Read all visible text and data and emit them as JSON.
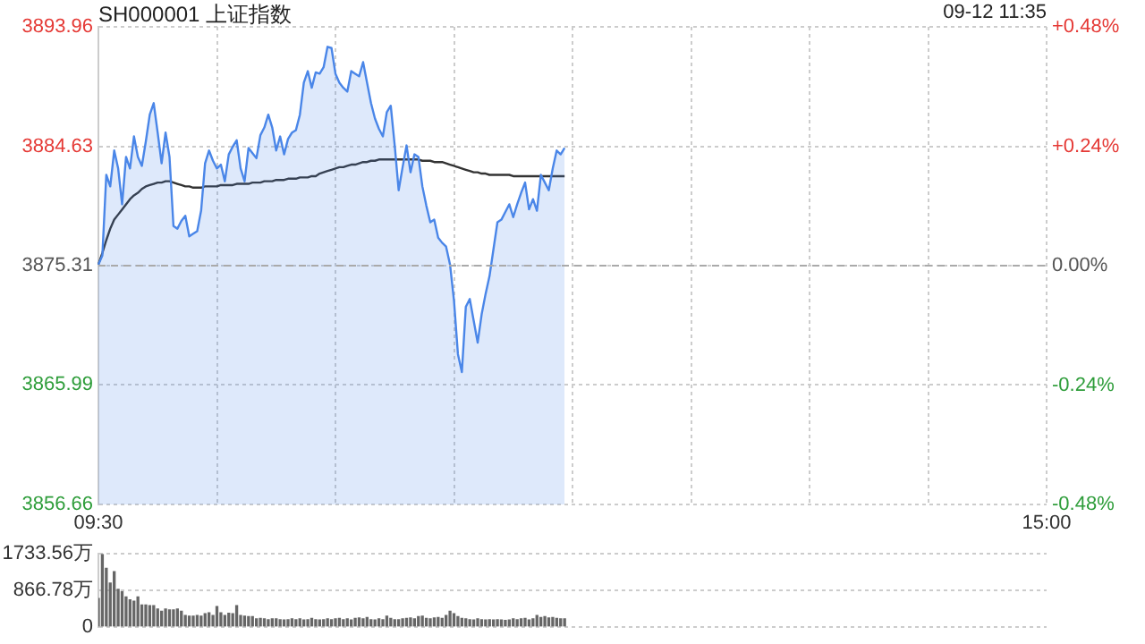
{
  "chart_data": [
    {
      "type": "line",
      "title": "SH000001 上证指数",
      "annotations": [
        "09-12 11:35"
      ],
      "categories": [
        "09:30",
        null,
        null,
        null,
        null,
        null,
        null,
        null,
        null,
        null,
        null,
        null,
        null,
        null,
        null,
        null,
        null,
        null,
        null,
        null,
        null,
        null,
        null,
        null,
        null,
        null,
        null,
        null,
        null,
        null,
        null,
        null,
        null,
        null,
        null,
        null,
        null,
        null,
        null,
        null,
        null,
        null,
        null,
        null,
        null,
        null,
        null,
        null,
        null,
        null,
        null,
        null,
        null,
        null,
        null,
        null,
        null,
        null,
        null,
        null,
        null,
        null,
        null,
        null,
        null,
        null,
        null,
        null,
        null,
        null,
        null,
        null,
        null,
        null,
        null,
        null,
        null,
        null,
        null,
        null,
        null,
        null,
        null,
        null,
        null,
        null,
        null,
        null,
        null,
        null,
        null,
        null,
        null,
        null,
        null,
        null,
        null,
        null,
        null,
        null,
        null,
        null,
        null,
        null,
        null,
        null,
        null,
        null,
        null,
        null,
        null,
        null,
        null,
        null,
        null,
        null,
        null,
        null,
        null,
        null,
        null,
        null,
        null,
        null,
        null,
        null,
        null,
        null,
        null,
        null,
        null,
        null,
        null,
        null,
        null,
        null,
        null,
        null,
        null,
        null,
        null,
        null,
        null,
        null,
        null,
        null,
        null,
        null,
        null,
        null,
        null,
        null,
        null,
        null,
        null,
        null,
        null,
        null,
        null,
        null,
        null,
        null,
        null,
        null,
        null,
        null,
        null,
        null,
        null,
        null,
        null,
        null,
        null,
        null,
        null,
        null,
        null,
        null,
        null,
        null,
        null,
        null,
        null,
        null,
        null,
        null,
        null,
        null,
        null,
        null,
        null,
        null,
        null,
        null,
        null,
        null,
        null,
        null,
        null,
        null,
        null,
        null,
        null,
        null,
        null,
        null,
        null,
        null,
        null,
        null,
        null,
        null,
        null,
        null,
        null,
        null,
        null,
        null,
        null,
        null,
        null,
        null,
        null,
        null,
        null,
        null,
        null,
        null,
        null,
        null,
        null,
        null,
        null,
        null,
        null,
        null,
        null,
        null,
        null,
        null,
        "15:00"
      ],
      "ylim": [
        3856.66,
        3893.96
      ],
      "yticks": [
        3856.66,
        3865.99,
        3875.31,
        3884.63,
        3893.96
      ],
      "y2lim": [
        -0.48,
        0.48
      ],
      "y2ticks": [
        {
          "value": -0.48,
          "label": "-0.48%"
        },
        {
          "value": -0.24,
          "label": "-0.24%"
        },
        {
          "value": 0,
          "label": "0.00%"
        },
        {
          "value": 0.24,
          "label": "+0.24%"
        },
        {
          "value": 0.48,
          "label": "+0.48%"
        }
      ],
      "grid": true,
      "legend": false,
      "marker": "none",
      "ref_lines": [
        {
          "axis": "y",
          "value": 3875.31,
          "color": "#aaaaaa",
          "line_style": "dashed"
        }
      ],
      "series": [
        {
          "type": "area",
          "color": "#4a86e8",
          "values": [
            3875.4,
            3876.1,
            3882.4,
            3881.5,
            3884.3,
            3882.9,
            3880.1,
            3883.8,
            3882.9,
            3885.4,
            3883.8,
            3883.1,
            3885.0,
            3887.1,
            3888.0,
            3885.7,
            3883.3,
            3885.7,
            3883.8,
            3878.4,
            3878.2,
            3878.8,
            3879.2,
            3877.6,
            3877.8,
            3878.0,
            3879.6,
            3883.3,
            3884.3,
            3883.5,
            3882.9,
            3883.2,
            3881.9,
            3884.0,
            3884.6,
            3885.1,
            3882.9,
            3881.9,
            3884.5,
            3884.1,
            3883.7,
            3885.5,
            3886.1,
            3887.1,
            3886.1,
            3884.3,
            3885.4,
            3884.0,
            3885.2,
            3885.7,
            3885.9,
            3887.1,
            3889.6,
            3890.5,
            3889.2,
            3890.4,
            3890.3,
            3890.8,
            3892.4,
            3892.3,
            3890.3,
            3889.6,
            3889.2,
            3888.9,
            3890.5,
            3890.3,
            3890.1,
            3891.2,
            3889.6,
            3888.0,
            3886.8,
            3886.0,
            3885.4,
            3887.3,
            3887.8,
            3884.7,
            3881.2,
            3883.0,
            3884.7,
            3882.6,
            3884.0,
            3883.8,
            3881.5,
            3880.0,
            3878.7,
            3878.9,
            3877.5,
            3877.1,
            3876.8,
            3875.4,
            3872.6,
            3868.4,
            3867.0,
            3872.1,
            3872.7,
            3871.0,
            3869.3,
            3871.5,
            3873.1,
            3874.5,
            3876.6,
            3878.7,
            3878.9,
            3879.5,
            3880.1,
            3879.1,
            3880.1,
            3881.0,
            3881.8,
            3879.7,
            3880.5,
            3879.6,
            3882.4,
            3881.8,
            3881.2,
            3882.9,
            3884.3,
            3884.0,
            3884.5,
            null,
            null,
            null,
            null,
            null,
            null,
            null,
            null,
            null,
            null,
            null,
            null,
            null,
            null,
            null,
            null,
            null,
            null,
            null,
            null,
            null,
            null,
            null,
            null,
            null,
            null,
            null,
            null,
            null,
            null,
            null,
            null,
            null,
            null,
            null,
            null,
            null,
            null,
            null,
            null,
            null,
            null,
            null,
            null,
            null,
            null,
            null,
            null,
            null,
            null,
            null,
            null,
            null,
            null,
            null,
            null,
            null,
            null,
            null,
            null,
            null,
            null,
            null,
            null,
            null,
            null,
            null,
            null,
            null,
            null,
            null,
            null,
            null,
            null,
            null,
            null,
            null,
            null,
            null,
            null,
            null,
            null,
            null,
            null,
            null,
            null,
            null,
            null,
            null,
            null,
            null,
            null,
            null,
            null,
            null,
            null,
            null,
            null,
            null,
            null,
            null,
            null,
            null,
            null,
            null,
            null,
            null,
            null,
            null,
            null,
            null,
            null,
            null,
            null,
            null,
            null,
            null,
            null,
            null,
            null,
            null,
            null
          ]
        },
        {
          "type": "line",
          "color": "#333333",
          "values": [
            3875.4,
            3876.3,
            3877.3,
            3878.2,
            3878.9,
            3879.3,
            3879.7,
            3880.1,
            3880.5,
            3880.8,
            3881.0,
            3881.3,
            3881.5,
            3881.6,
            3881.7,
            3881.8,
            3881.8,
            3881.9,
            3881.9,
            3881.8,
            3881.7,
            3881.6,
            3881.5,
            3881.5,
            3881.4,
            3881.4,
            3881.4,
            3881.5,
            3881.5,
            3881.5,
            3881.5,
            3881.6,
            3881.6,
            3881.6,
            3881.6,
            3881.7,
            3881.7,
            3881.7,
            3881.7,
            3881.8,
            3881.8,
            3881.8,
            3881.9,
            3881.9,
            3881.9,
            3882.0,
            3882.0,
            3882.0,
            3882.1,
            3882.1,
            3882.1,
            3882.2,
            3882.2,
            3882.2,
            3882.3,
            3882.3,
            3882.5,
            3882.6,
            3882.7,
            3882.8,
            3882.9,
            3883.0,
            3883.0,
            3883.1,
            3883.2,
            3883.2,
            3883.3,
            3883.4,
            3883.4,
            3883.5,
            3883.5,
            3883.6,
            3883.6,
            3883.6,
            3883.6,
            3883.6,
            3883.6,
            3883.6,
            3883.6,
            3883.6,
            3883.6,
            3883.6,
            3883.5,
            3883.5,
            3883.5,
            3883.4,
            3883.4,
            3883.4,
            3883.3,
            3883.2,
            3883.1,
            3883.0,
            3882.9,
            3882.8,
            3882.7,
            3882.6,
            3882.6,
            3882.5,
            3882.5,
            3882.4,
            3882.4,
            3882.4,
            3882.4,
            3882.4,
            3882.4,
            3882.3,
            3882.3,
            3882.3,
            3882.3,
            3882.3,
            3882.3,
            3882.3,
            3882.3,
            3882.3,
            3882.3,
            3882.3,
            3882.3,
            3882.3,
            3882.3,
            null,
            null,
            null,
            null,
            null,
            null,
            null,
            null,
            null,
            null,
            null,
            null,
            null,
            null,
            null,
            null,
            null,
            null,
            null,
            null,
            null,
            null,
            null,
            null,
            null,
            null,
            null,
            null,
            null,
            null,
            null,
            null,
            null,
            null,
            null,
            null,
            null,
            null,
            null,
            null,
            null,
            null,
            null,
            null,
            null,
            null,
            null,
            null,
            null,
            null,
            null,
            null,
            null,
            null,
            null,
            null,
            null,
            null,
            null,
            null,
            null,
            null,
            null,
            null,
            null,
            null,
            null,
            null,
            null,
            null,
            null,
            null,
            null,
            null,
            null,
            null,
            null,
            null,
            null,
            null,
            null,
            null,
            null,
            null,
            null,
            null,
            null,
            null,
            null,
            null,
            null,
            null,
            null,
            null,
            null,
            null,
            null,
            null,
            null,
            null,
            null,
            null,
            null,
            null,
            null,
            null,
            null,
            null,
            null,
            null,
            null,
            null,
            null,
            null,
            null,
            null,
            null,
            null,
            null,
            null,
            null,
            null
          ]
        }
      ]
    },
    {
      "type": "bar",
      "color": "#666666",
      "tick_labels": "y",
      "grid": "y",
      "categories": [
        null,
        null,
        null,
        null,
        null,
        null,
        null,
        null,
        null,
        null,
        null,
        null,
        null,
        null,
        null,
        null,
        null,
        null,
        null,
        null,
        null,
        null,
        null,
        null,
        null,
        null,
        null,
        null,
        null,
        null,
        null,
        null,
        null,
        null,
        null,
        null,
        null,
        null,
        null,
        null,
        null,
        null,
        null,
        null,
        null,
        null,
        null,
        null,
        null,
        null,
        null,
        null,
        null,
        null,
        null,
        null,
        null,
        null,
        null,
        null,
        null,
        null,
        null,
        null,
        null,
        null,
        null,
        null,
        null,
        null,
        null,
        null,
        null,
        null,
        null,
        null,
        null,
        null,
        null,
        null,
        null,
        null,
        null,
        null,
        null,
        null,
        null,
        null,
        null,
        null,
        null,
        null,
        null,
        null,
        null,
        null,
        null,
        null,
        null,
        null,
        null,
        null,
        null,
        null,
        null,
        null,
        null,
        null,
        null,
        null,
        null,
        null,
        null,
        null,
        null,
        null,
        null,
        null,
        null,
        null,
        null,
        null,
        null,
        null,
        null,
        null,
        null,
        null,
        null,
        null,
        null,
        null,
        null,
        null,
        null,
        null,
        null,
        null,
        null,
        null,
        null,
        null,
        null,
        null,
        null,
        null,
        null,
        null,
        null,
        null,
        null,
        null,
        null,
        null,
        null,
        null,
        null,
        null,
        null,
        null,
        null,
        null,
        null,
        null,
        null,
        null,
        null,
        null,
        null,
        null,
        null,
        null,
        null,
        null,
        null,
        null,
        null,
        null,
        null,
        null,
        null,
        null,
        null,
        null,
        null,
        null,
        null,
        null,
        null,
        null,
        null,
        null,
        null,
        null,
        null,
        null,
        null,
        null,
        null,
        null,
        null,
        null,
        null,
        null,
        null,
        null,
        null,
        null,
        null,
        null,
        null,
        null,
        null,
        null,
        null,
        null,
        null,
        null,
        null,
        null,
        null,
        null,
        null,
        null,
        null,
        null,
        null,
        null,
        null,
        null,
        null,
        null,
        null,
        null,
        null,
        null,
        null,
        null,
        null,
        null,
        null
      ],
      "ylim": [
        0,
        1733.56
      ],
      "yticks": [
        0,
        {
          "value": 866.78,
          "label": "866.78万"
        },
        {
          "value": 1733.56,
          "label": "1733.56万"
        }
      ],
      "values": [
        670,
        1720,
        1390,
        1040,
        1310,
        890,
        830,
        710,
        640,
        610,
        710,
        520,
        520,
        500,
        500,
        420,
        370,
        420,
        400,
        400,
        420,
        370,
        270,
        250,
        250,
        270,
        250,
        310,
        330,
        270,
        480,
        330,
        270,
        320,
        310,
        500,
        270,
        250,
        240,
        240,
        190,
        200,
        190,
        170,
        190,
        190,
        170,
        160,
        170,
        190,
        170,
        190,
        160,
        170,
        200,
        170,
        160,
        170,
        190,
        170,
        190,
        200,
        170,
        190,
        160,
        200,
        210,
        190,
        220,
        170,
        160,
        190,
        170,
        250,
        200,
        170,
        170,
        190,
        200,
        210,
        190,
        240,
        250,
        200,
        190,
        210,
        220,
        200,
        270,
        370,
        310,
        240,
        200,
        190,
        170,
        160,
        190,
        170,
        160,
        170,
        160,
        170,
        160,
        150,
        160,
        190,
        170,
        190,
        200,
        160,
        190,
        270,
        220,
        240,
        210,
        220,
        200,
        190,
        190,
        null,
        null,
        null,
        null,
        null,
        null,
        null,
        null,
        null,
        null,
        null,
        null,
        null,
        null,
        null,
        null,
        null,
        null,
        null,
        null,
        null,
        null,
        null,
        null,
        null,
        null,
        null,
        null,
        null,
        null,
        null,
        null,
        null,
        null,
        null,
        null,
        null,
        null,
        null,
        null,
        null,
        null,
        null,
        null,
        null,
        null,
        null,
        null,
        null,
        null,
        null,
        null,
        null,
        null,
        null,
        null,
        null,
        null,
        null,
        null,
        null,
        null,
        null,
        null,
        null,
        null,
        null,
        null,
        null,
        null,
        null,
        null,
        null,
        null,
        null,
        null,
        null,
        null,
        null,
        null,
        null,
        null,
        null,
        null,
        null,
        null,
        null,
        null,
        null,
        null,
        null,
        null,
        null,
        null,
        null,
        null,
        null,
        null,
        null,
        null,
        null,
        null,
        null,
        null,
        null,
        null,
        null,
        null,
        null,
        null,
        null,
        null,
        null,
        null,
        null,
        null,
        null,
        null,
        null,
        null,
        null,
        null
      ]
    }
  ]
}
